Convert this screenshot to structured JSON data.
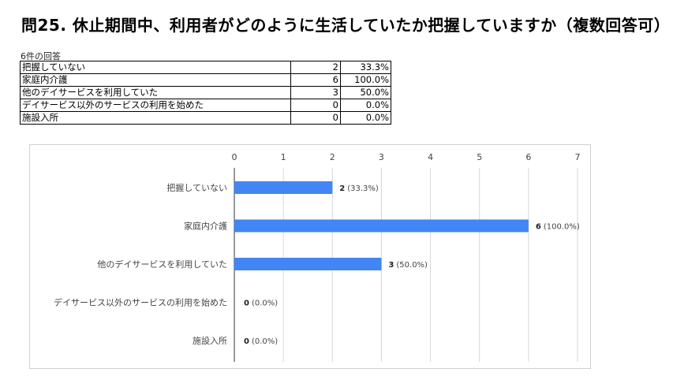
{
  "title": "問25. 休止期間中、利用者がどのように生活していたか把握していますか（複数回答可）",
  "response_count_label": "6件の回答",
  "table": {
    "rows": [
      {
        "label": "把握していない",
        "count": "2",
        "percent": "33.3%"
      },
      {
        "label": "家庭内介護",
        "count": "6",
        "percent": "100.0%"
      },
      {
        "label": "他のデイサービスを利用していた",
        "count": "3",
        "percent": "50.0%"
      },
      {
        "label": "デイサービス以外のサービスの利用を始めた",
        "count": "0",
        "percent": "0.0%"
      },
      {
        "label": "施設入所",
        "count": "0",
        "percent": "0.0%"
      }
    ]
  },
  "chart_data": {
    "type": "bar",
    "orientation": "horizontal",
    "categories": [
      "把握していない",
      "家庭内介護",
      "他のデイサービスを利用していた",
      "デイサービス以外のサービスの利用を始めた",
      "施設入所"
    ],
    "values": [
      2,
      6,
      3,
      0,
      0
    ],
    "value_labels": [
      "2",
      "6",
      "3",
      "0",
      "0"
    ],
    "percent_labels": [
      "(33.3%)",
      "(100.0%)",
      "(50.0%)",
      "(0.0%)",
      "(0.0%)"
    ],
    "xlim": [
      0,
      7
    ],
    "xticks": [
      "0",
      "1",
      "2",
      "3",
      "4",
      "5",
      "6",
      "7"
    ],
    "x_axis_position": "top",
    "grid": true,
    "legend": "none",
    "bar_color": "#4285f4"
  }
}
